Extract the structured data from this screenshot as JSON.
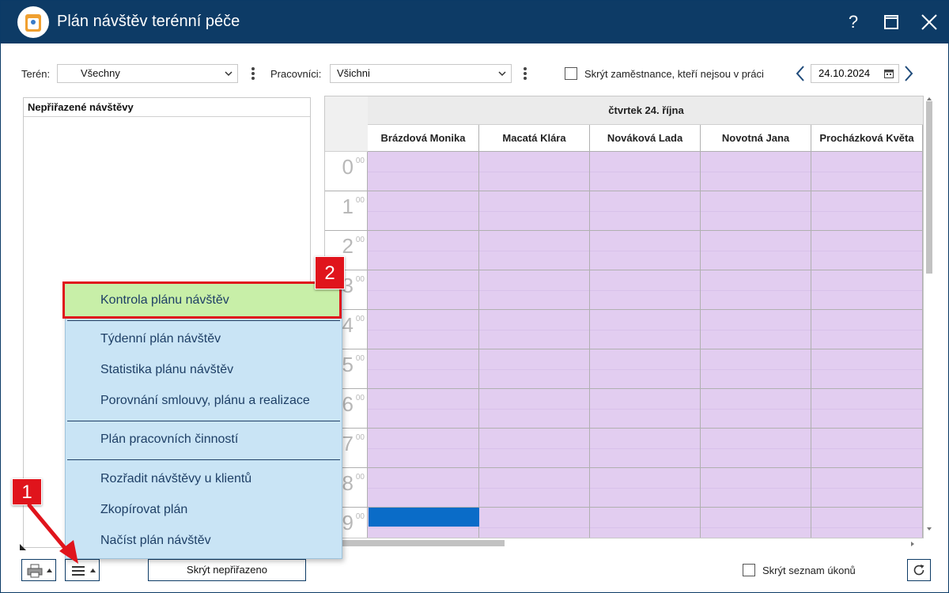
{
  "window": {
    "title": "Plán návštěv terénní péče",
    "help_icon_glyph": "?",
    "maximize_icon": "maximize-icon",
    "close_icon": "close-icon"
  },
  "toolbar": {
    "teren_label": "Terén:",
    "teren_value": "Všechny",
    "pracovnici_label": "Pracovníci:",
    "pracovnici_value": "Všichni",
    "hide_employees_label": "Skrýt zaměstnance, kteří nejsou v práci",
    "date_value": "24.10.2024"
  },
  "left_panel": {
    "header": "Nepřiřazené návštěvy"
  },
  "schedule": {
    "day_header": "čtvrtek 24. října",
    "columns": [
      "Brázdová Monika",
      "Macatá Klára",
      "Nováková Lada",
      "Novotná Jana",
      "Procházková Květa"
    ],
    "hours": [
      "0",
      "1",
      "2",
      "3",
      "4",
      "5",
      "6",
      "7",
      "8",
      "9"
    ],
    "minutes_label": "00",
    "cell_color": "#e2cdf0",
    "appointment_color": "#0a6cc8"
  },
  "menu": {
    "items": [
      "Kontrola plánu návštěv",
      "Týdenní plán návštěv",
      "Statistika plánu návštěv",
      "Porovnání smlouvy, plánu a realizace",
      "Plán pracovních činností",
      "Rozřadit návštěvy u klientů",
      "Zkopírovat plán",
      "Načíst plán návštěv"
    ],
    "highlight_color": "#c8efa8",
    "background_color": "#c9e4f5"
  },
  "bottom_bar": {
    "hide_unassigned_label": "Skrýt nepřiřazeno",
    "hide_tasks_label": "Skrýt seznam úkonů"
  },
  "annotations": {
    "badge_1": "1",
    "badge_2": "2",
    "color": "#e0141c"
  }
}
